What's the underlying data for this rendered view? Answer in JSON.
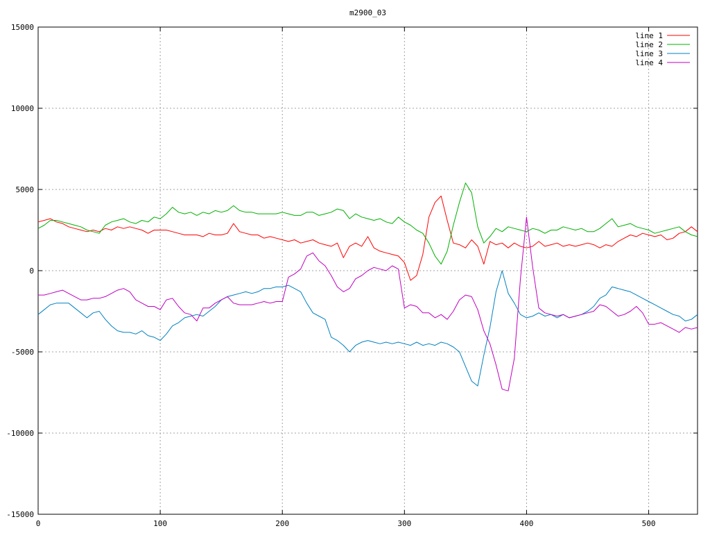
{
  "chart_data": {
    "type": "line",
    "title": "m2900_03",
    "xlabel": "",
    "ylabel": "",
    "xlim": [
      0,
      540
    ],
    "ylim": [
      -15000,
      15000
    ],
    "x_ticks": [
      0,
      100,
      200,
      300,
      400,
      500
    ],
    "y_ticks": [
      -15000,
      -10000,
      -5000,
      0,
      5000,
      10000,
      15000
    ],
    "grid": true,
    "legend_position": "top-right",
    "x": [
      0,
      5,
      10,
      15,
      20,
      25,
      30,
      35,
      40,
      45,
      50,
      55,
      60,
      65,
      70,
      75,
      80,
      85,
      90,
      95,
      100,
      105,
      110,
      115,
      120,
      125,
      130,
      135,
      140,
      145,
      150,
      155,
      160,
      165,
      170,
      175,
      180,
      185,
      190,
      195,
      200,
      205,
      210,
      215,
      220,
      225,
      230,
      235,
      240,
      245,
      250,
      255,
      260,
      265,
      270,
      275,
      280,
      285,
      290,
      295,
      300,
      305,
      310,
      315,
      320,
      325,
      330,
      335,
      340,
      345,
      350,
      355,
      360,
      365,
      370,
      375,
      380,
      385,
      390,
      395,
      400,
      405,
      410,
      415,
      420,
      425,
      430,
      435,
      440,
      445,
      450,
      455,
      460,
      465,
      470,
      475,
      480,
      485,
      490,
      495,
      500,
      505,
      510,
      515,
      520,
      525,
      530,
      535,
      540
    ],
    "series": [
      {
        "name": "line 1",
        "color": "#ff0000",
        "values": [
          3000,
          3100,
          3200,
          3000,
          2900,
          2700,
          2600,
          2500,
          2400,
          2500,
          2400,
          2600,
          2500,
          2700,
          2600,
          2700,
          2600,
          2500,
          2300,
          2500,
          2500,
          2500,
          2400,
          2300,
          2200,
          2200,
          2200,
          2100,
          2300,
          2200,
          2200,
          2300,
          2900,
          2400,
          2300,
          2200,
          2200,
          2000,
          2100,
          2000,
          1900,
          1800,
          1900,
          1700,
          1800,
          1900,
          1700,
          1600,
          1500,
          1700,
          800,
          1500,
          1700,
          1500,
          2100,
          1400,
          1200,
          1100,
          1000,
          900,
          500,
          -600,
          -300,
          1000,
          3300,
          4200,
          4600,
          3100,
          1700,
          1600,
          1400,
          1900,
          1500,
          400,
          1800,
          1600,
          1700,
          1400,
          1700,
          1500,
          1400,
          1500,
          1800,
          1500,
          1600,
          1700,
          1500,
          1600,
          1500,
          1600,
          1700,
          1600,
          1400,
          1600,
          1500,
          1800,
          2000,
          2200,
          2100,
          2300,
          2200,
          2100,
          2200,
          1900,
          2000,
          2300,
          2400,
          2700,
          2400
        ]
      },
      {
        "name": "line 2",
        "color": "#00b000",
        "values": [
          2600,
          2800,
          3100,
          3100,
          3000,
          2900,
          2800,
          2700,
          2500,
          2400,
          2300,
          2800,
          3000,
          3100,
          3200,
          3000,
          2900,
          3100,
          3000,
          3300,
          3200,
          3500,
          3900,
          3600,
          3500,
          3600,
          3400,
          3600,
          3500,
          3700,
          3600,
          3700,
          4000,
          3700,
          3600,
          3600,
          3500,
          3500,
          3500,
          3500,
          3600,
          3500,
          3400,
          3400,
          3600,
          3600,
          3400,
          3500,
          3600,
          3800,
          3700,
          3200,
          3500,
          3300,
          3200,
          3100,
          3200,
          3000,
          2900,
          3300,
          3000,
          2800,
          2500,
          2300,
          1700,
          900,
          400,
          1200,
          2800,
          4200,
          5400,
          4800,
          2700,
          1700,
          2100,
          2600,
          2400,
          2700,
          2600,
          2500,
          2400,
          2600,
          2500,
          2300,
          2500,
          2500,
          2700,
          2600,
          2500,
          2600,
          2400,
          2400,
          2600,
          2900,
          3200,
          2700,
          2800,
          2900,
          2700,
          2600,
          2500,
          2300,
          2400,
          2500,
          2600,
          2700,
          2400,
          2200,
          2100
        ]
      },
      {
        "name": "line 3",
        "color": "#0080c0",
        "values": [
          -2700,
          -2400,
          -2100,
          -2000,
          -2000,
          -2000,
          -2300,
          -2600,
          -2900,
          -2600,
          -2500,
          -3000,
          -3400,
          -3700,
          -3800,
          -3800,
          -3900,
          -3700,
          -4000,
          -4100,
          -4300,
          -3900,
          -3400,
          -3200,
          -2900,
          -2800,
          -2700,
          -2800,
          -2500,
          -2200,
          -1800,
          -1600,
          -1500,
          -1400,
          -1300,
          -1400,
          -1300,
          -1100,
          -1100,
          -1000,
          -1000,
          -900,
          -1100,
          -1300,
          -2000,
          -2600,
          -2800,
          -3000,
          -4100,
          -4300,
          -4600,
          -5000,
          -4600,
          -4400,
          -4300,
          -4400,
          -4500,
          -4400,
          -4500,
          -4400,
          -4500,
          -4600,
          -4400,
          -4600,
          -4500,
          -4600,
          -4400,
          -4500,
          -4700,
          -5000,
          -5900,
          -6800,
          -7100,
          -5200,
          -3500,
          -1300,
          0,
          -1400,
          -2000,
          -2700,
          -2900,
          -2800,
          -2600,
          -2800,
          -2700,
          -2900,
          -2700,
          -2900,
          -2800,
          -2700,
          -2500,
          -2200,
          -1700,
          -1500,
          -1000,
          -1100,
          -1200,
          -1300,
          -1500,
          -1700,
          -1900,
          -2100,
          -2300,
          -2500,
          -2700,
          -2800,
          -3100,
          -3000,
          -2700
        ]
      },
      {
        "name": "line 4",
        "color": "#c000c0",
        "values": [
          -1500,
          -1500,
          -1400,
          -1300,
          -1200,
          -1400,
          -1600,
          -1800,
          -1800,
          -1700,
          -1700,
          -1600,
          -1400,
          -1200,
          -1100,
          -1300,
          -1800,
          -2000,
          -2200,
          -2200,
          -2400,
          -1800,
          -1700,
          -2200,
          -2600,
          -2700,
          -3100,
          -2300,
          -2300,
          -2000,
          -1800,
          -1600,
          -2000,
          -2100,
          -2100,
          -2100,
          -2000,
          -1900,
          -2000,
          -1900,
          -1900,
          -400,
          -200,
          100,
          900,
          1100,
          600,
          300,
          -300,
          -1000,
          -1300,
          -1100,
          -500,
          -300,
          0,
          200,
          100,
          0,
          300,
          100,
          -2300,
          -2100,
          -2200,
          -2600,
          -2600,
          -2900,
          -2700,
          -3000,
          -2500,
          -1800,
          -1500,
          -1600,
          -2400,
          -3700,
          -4500,
          -5800,
          -7300,
          -7400,
          -5400,
          -500,
          3300,
          200,
          -2300,
          -2600,
          -2700,
          -2800,
          -2700,
          -2900,
          -2800,
          -2700,
          -2600,
          -2500,
          -2100,
          -2200,
          -2500,
          -2800,
          -2700,
          -2500,
          -2200,
          -2600,
          -3300,
          -3300,
          -3200,
          -3400,
          -3600,
          -3800,
          -3500,
          -3600,
          -3500
        ]
      }
    ]
  }
}
